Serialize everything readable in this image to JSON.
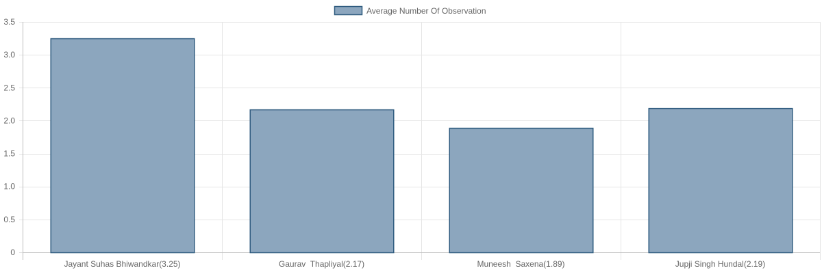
{
  "chart_data": {
    "type": "bar",
    "categories": [
      "Jayant Suhas Bhiwandkar(3.25)",
      "Gaurav  Thapliyal(2.17)",
      "Muneesh  Saxena(1.89)",
      "Jupji Singh Hundal(2.19)"
    ],
    "series": [
      {
        "name": "Average Number Of Observation",
        "values": [
          3.25,
          2.17,
          1.89,
          2.19
        ]
      }
    ],
    "y_ticks": [
      "0",
      "0.5",
      "1.0",
      "1.5",
      "2.0",
      "2.5",
      "3.0",
      "3.5"
    ],
    "ylim": [
      0,
      3.5
    ],
    "grid": true,
    "legend_position": "top-center",
    "colors": {
      "bar_fill": "#8CA6BE",
      "bar_stroke": "#2F5B7F"
    }
  }
}
